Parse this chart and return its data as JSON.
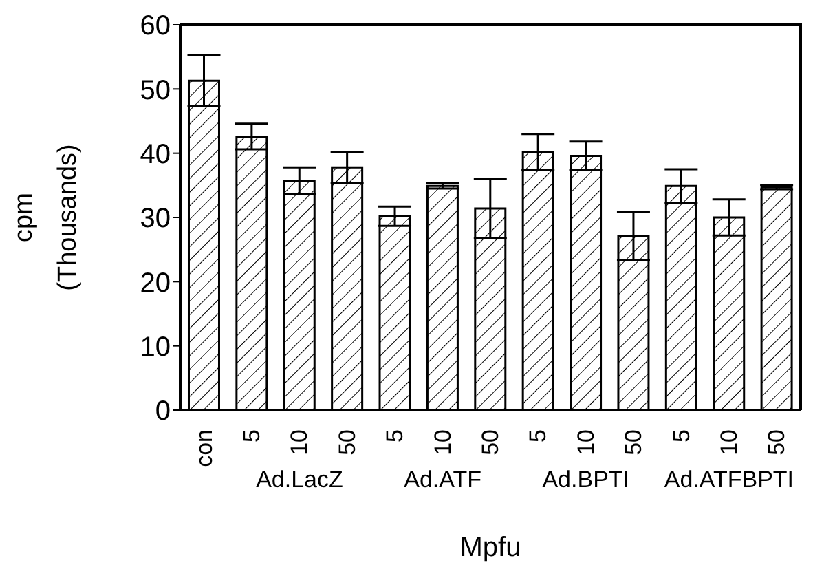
{
  "chart_data": {
    "type": "bar",
    "xlabel": "Mpfu",
    "ylabel": "cpm\n(Thousands)",
    "categories": [
      "con",
      "5",
      "10",
      "50",
      "5",
      "10",
      "50",
      "5",
      "10",
      "50",
      "5",
      "10",
      "50"
    ],
    "values": [
      51.3,
      42.6,
      35.7,
      37.8,
      30.2,
      34.9,
      31.4,
      40.2,
      39.6,
      27.1,
      34.9,
      30.0,
      34.7
    ],
    "errors": [
      4,
      2,
      2.1,
      2.4,
      1.5,
      0.4,
      4.6,
      2.8,
      2.2,
      3.7,
      2.6,
      2.8,
      0.3
    ],
    "color": "#000000",
    "annotations": [
      "Ad.LacZ",
      "Ad.ATF",
      "Ad.BPTI",
      "Ad.ATFBPTI"
    ],
    "ylim": [
      0,
      60
    ],
    "yticks": [
      0,
      10,
      20,
      30,
      40,
      50,
      60
    ],
    "grid": false
  }
}
